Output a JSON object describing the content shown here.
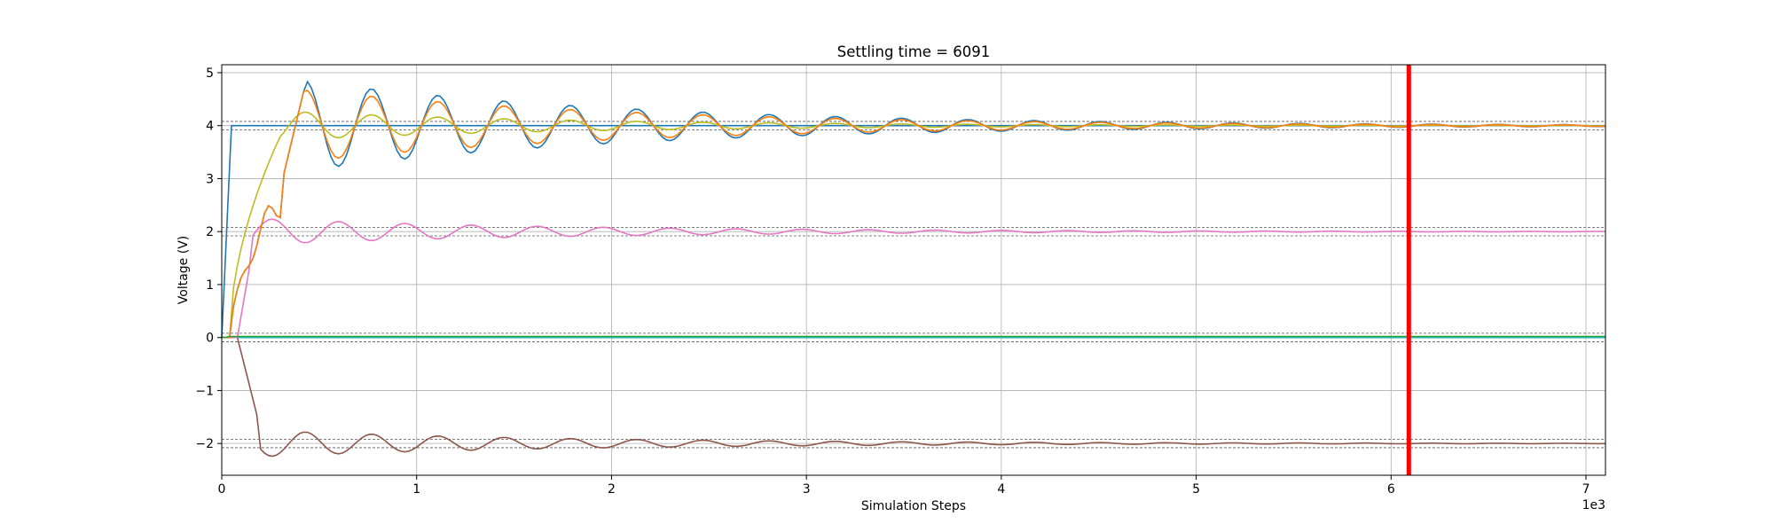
{
  "chart_data": {
    "type": "line",
    "title": "Settling time = 6091",
    "xlabel": "Simulation Steps",
    "ylabel": "Voltage (V)",
    "x_offset_label": "1e3",
    "xlim": [
      0,
      7100
    ],
    "ylim": [
      -2.6,
      5.15
    ],
    "xticks": [
      0,
      1000,
      2000,
      3000,
      4000,
      5000,
      6000,
      7000
    ],
    "xtick_labels": [
      "0",
      "1",
      "2",
      "3",
      "4",
      "5",
      "6",
      "7"
    ],
    "yticks": [
      -2,
      -1,
      0,
      1,
      2,
      3,
      4,
      5
    ],
    "ytick_labels": [
      "−2",
      "−1",
      "0",
      "1",
      "2",
      "3",
      "4",
      "5"
    ],
    "grid": true,
    "settling_time": 6091,
    "settling_line_color": "#ff0000",
    "tolerance_bands": [
      {
        "lower": 3.92,
        "upper": 4.08
      },
      {
        "lower": 1.92,
        "upper": 2.08
      },
      {
        "lower": -0.08,
        "upper": 0.08
      },
      {
        "lower": -2.08,
        "upper": -1.92
      }
    ],
    "reference_levels": [
      {
        "value": 4.0,
        "start": 50,
        "color": "#1f77b4"
      },
      {
        "value": 0.0,
        "start": 0,
        "color": "#17becf"
      }
    ],
    "series": [
      {
        "color": "#bcbd22",
        "target": 4.0,
        "kind": "green_ish"
      },
      {
        "color": "#8c564b",
        "target": -2.0,
        "kind": "negative"
      },
      {
        "color": "#e377c2",
        "target": 2.0,
        "kind": "middle"
      },
      {
        "color": "#1f77b4",
        "target": 4.0,
        "kind": "blue"
      },
      {
        "color": "#ff7f0e",
        "target": 4.0,
        "kind": "orange"
      },
      {
        "color": "#2ca02c",
        "target": 0.02,
        "kind": "flat"
      }
    ]
  }
}
